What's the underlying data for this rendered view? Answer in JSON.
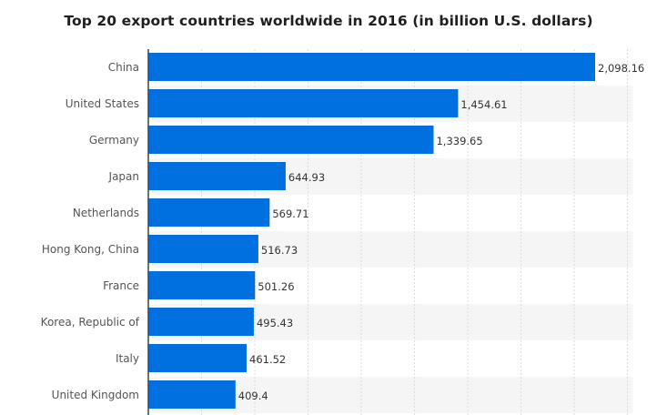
{
  "chart_data": {
    "type": "bar",
    "orientation": "horizontal",
    "title": "Top 20 export countries worldwide in 2016 (in billion U.S. dollars)",
    "categories": [
      "China",
      "United States",
      "Germany",
      "Japan",
      "Netherlands",
      "Hong Kong, China",
      "France",
      "Korea, Republic of",
      "Italy",
      "United Kingdom"
    ],
    "values": [
      2098.16,
      1454.61,
      1339.65,
      644.93,
      569.71,
      516.73,
      501.26,
      495.43,
      461.52,
      409.4
    ],
    "value_labels": [
      "2,098.16",
      "1,454.61",
      "1,339.65",
      "644.93",
      "569.71",
      "516.73",
      "501.26",
      "495.43",
      "461.52",
      "409.4"
    ],
    "xlim": [
      0,
      2250
    ],
    "gridlines_at": [
      250,
      500,
      750,
      1000,
      1250,
      1500,
      1750,
      2000,
      2250
    ],
    "grid": true,
    "xlabel": "",
    "ylabel": "",
    "colors": {
      "bar": "#0070e0",
      "stripe": "#f5f5f5",
      "grid": "#dcdcdc",
      "axis": "#444444"
    }
  }
}
